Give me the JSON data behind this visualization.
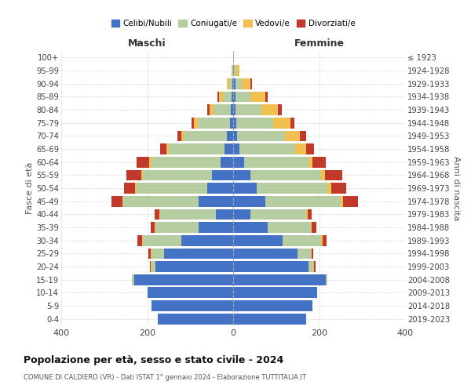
{
  "age_groups": [
    "0-4",
    "5-9",
    "10-14",
    "15-19",
    "20-24",
    "25-29",
    "30-34",
    "35-39",
    "40-44",
    "45-49",
    "50-54",
    "55-59",
    "60-64",
    "65-69",
    "70-74",
    "75-79",
    "80-84",
    "85-89",
    "90-94",
    "95-99",
    "100+"
  ],
  "birth_years": [
    "2019-2023",
    "2014-2018",
    "2009-2013",
    "2004-2008",
    "1999-2003",
    "1994-1998",
    "1989-1993",
    "1984-1988",
    "1979-1983",
    "1974-1978",
    "1969-1973",
    "1964-1968",
    "1959-1963",
    "1954-1958",
    "1949-1953",
    "1944-1948",
    "1939-1943",
    "1934-1938",
    "1929-1933",
    "1924-1928",
    "≤ 1923"
  ],
  "colors": {
    "celibe": "#4472c4",
    "coniugato": "#b5cda0",
    "vedovo": "#f0c050",
    "divorziato": "#c0392b"
  },
  "maschi": {
    "celibe": [
      175,
      190,
      200,
      230,
      180,
      160,
      120,
      80,
      40,
      80,
      60,
      50,
      30,
      20,
      15,
      8,
      5,
      3,
      2,
      0,
      0
    ],
    "coniugato": [
      0,
      0,
      0,
      5,
      10,
      30,
      90,
      100,
      130,
      175,
      165,
      160,
      160,
      130,
      100,
      75,
      40,
      20,
      8,
      2,
      0
    ],
    "vedovo": [
      0,
      0,
      0,
      0,
      2,
      2,
      2,
      2,
      2,
      3,
      3,
      3,
      5,
      5,
      5,
      8,
      10,
      10,
      5,
      2,
      0
    ],
    "divorziato": [
      0,
      0,
      0,
      0,
      2,
      5,
      10,
      10,
      10,
      25,
      25,
      35,
      30,
      15,
      10,
      5,
      5,
      3,
      0,
      0,
      0
    ]
  },
  "femmine": {
    "celibe": [
      170,
      185,
      195,
      215,
      175,
      150,
      115,
      80,
      40,
      75,
      55,
      40,
      25,
      15,
      10,
      8,
      5,
      5,
      5,
      2,
      0
    ],
    "coniugato": [
      0,
      0,
      0,
      5,
      12,
      30,
      90,
      100,
      130,
      175,
      165,
      165,
      150,
      130,
      110,
      85,
      60,
      35,
      15,
      5,
      0
    ],
    "vedovo": [
      0,
      0,
      0,
      0,
      2,
      2,
      3,
      3,
      3,
      5,
      8,
      8,
      10,
      25,
      35,
      40,
      40,
      35,
      20,
      8,
      2
    ],
    "divorziato": [
      0,
      0,
      0,
      0,
      2,
      5,
      10,
      10,
      10,
      35,
      35,
      40,
      30,
      18,
      15,
      10,
      8,
      5,
      3,
      0,
      0
    ]
  },
  "xlim": 400,
  "title": "Popolazione per età, sesso e stato civile - 2024",
  "subtitle": "COMUNE DI CALDIERO (VR) - Dati ISTAT 1° gennaio 2024 - Elaborazione TUTTITALIA.IT",
  "ylabel_left": "Fasce di età",
  "ylabel_right": "Anni di nascita",
  "xlabel_left": "Maschi",
  "xlabel_right": "Femmine"
}
